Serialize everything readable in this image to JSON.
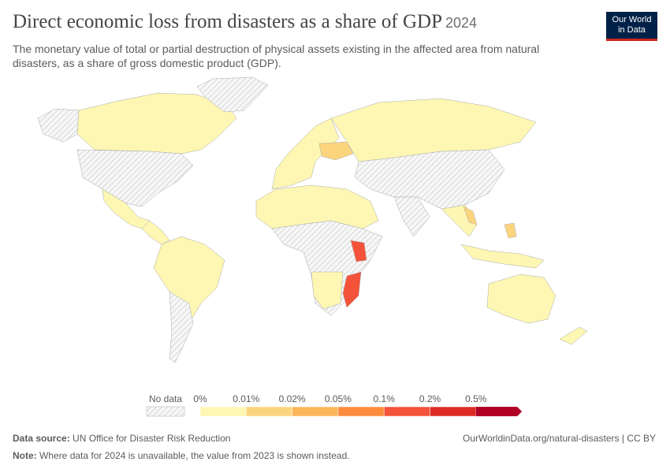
{
  "header": {
    "title": "Direct economic loss from disasters as a share of GDP",
    "year": "2024",
    "subtitle": "The monetary value of total or partial destruction of physical assets existing in the affected area from natural disasters, as a share of gross domestic product (GDP).",
    "logo": [
      "Our World",
      "in Data"
    ]
  },
  "legend": {
    "no_data": "No data",
    "bins": [
      {
        "label": "0%",
        "color": "#fdf7b3"
      },
      {
        "label": "0.01%",
        "color": "#fdd47e"
      },
      {
        "label": "0.02%",
        "color": "#fdb55a"
      },
      {
        "label": "0.05%",
        "color": "#fc8c3c"
      },
      {
        "label": "0.1%",
        "color": "#f4533a"
      },
      {
        "label": "0.2%",
        "color": "#dd2a25"
      },
      {
        "label": "0.5%",
        "color": "#b10026"
      }
    ]
  },
  "footer": {
    "source_label": "Data source:",
    "source": "UN Office for Disaster Risk Reduction",
    "url": "OurWorldinData.org/natural-disasters | CC BY",
    "note_label": "Note:",
    "note": "Where data for 2024 is unavailable, the value from 2023 is shown instead."
  }
}
